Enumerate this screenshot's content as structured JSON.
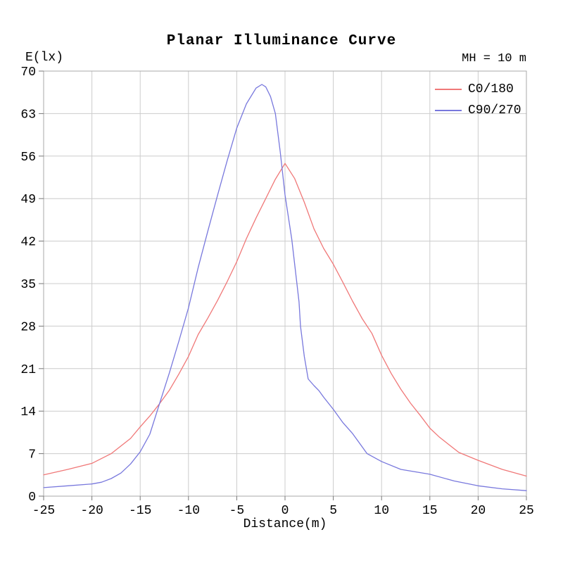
{
  "title": "Planar Illuminance Curve",
  "annotation": "MH = 10 m",
  "axes": {
    "y_label": "E(lx)",
    "x_label": "Distance(m)"
  },
  "legend": {
    "items": [
      {
        "label": "C0/180"
      },
      {
        "label": "C90/270"
      }
    ]
  },
  "colors": {
    "series_c0_180": "#f07878",
    "series_c90_270": "#7878dd",
    "grid": "#cccccc",
    "plot_border": "#aaaaaa",
    "tick": "#777777",
    "text": "#000000",
    "background": "#ffffff"
  },
  "chart_data": {
    "type": "line",
    "title": "Planar Illuminance Curve",
    "xlabel": "Distance(m)",
    "ylabel": "E(lx)",
    "annotation": "MH = 10 m",
    "xlim": [
      -25,
      25
    ],
    "ylim": [
      0,
      70
    ],
    "x_ticks": [
      -25,
      -20,
      -15,
      -10,
      -5,
      0,
      5,
      10,
      15,
      20,
      25
    ],
    "y_ticks": [
      0,
      7,
      14,
      21,
      28,
      35,
      42,
      49,
      56,
      63,
      70
    ],
    "grid": true,
    "legend_position": "top-right",
    "series": [
      {
        "name": "C0/180",
        "color": "#f07878",
        "points": [
          [
            -25,
            3.5
          ],
          [
            -22.5,
            4.4
          ],
          [
            -20,
            5.4
          ],
          [
            -18,
            7.0
          ],
          [
            -16,
            9.5
          ],
          [
            -15,
            11.4
          ],
          [
            -14,
            13.2
          ],
          [
            -13,
            15.2
          ],
          [
            -12,
            17.4
          ],
          [
            -11,
            20.1
          ],
          [
            -10,
            23.0
          ],
          [
            -9,
            26.6
          ],
          [
            -8,
            29.3
          ],
          [
            -7,
            32.2
          ],
          [
            -6,
            35.3
          ],
          [
            -5,
            38.6
          ],
          [
            -4,
            42.4
          ],
          [
            -3,
            45.8
          ],
          [
            -2,
            49.0
          ],
          [
            -1,
            52.2
          ],
          [
            0,
            54.8
          ],
          [
            1,
            52.3
          ],
          [
            2,
            48.4
          ],
          [
            3,
            44.0
          ],
          [
            4,
            40.8
          ],
          [
            5,
            38.2
          ],
          [
            6,
            35.2
          ],
          [
            7,
            32.1
          ],
          [
            8,
            29.2
          ],
          [
            9,
            26.8
          ],
          [
            10,
            23.2
          ],
          [
            11,
            20.2
          ],
          [
            12,
            17.6
          ],
          [
            13,
            15.3
          ],
          [
            14,
            13.3
          ],
          [
            15,
            11.2
          ],
          [
            16,
            9.7
          ],
          [
            18,
            7.2
          ],
          [
            20,
            5.9
          ],
          [
            22.5,
            4.4
          ],
          [
            25,
            3.3
          ]
        ]
      },
      {
        "name": "C90/270",
        "color": "#7878dd",
        "points": [
          [
            -25,
            1.4
          ],
          [
            -22.5,
            1.7
          ],
          [
            -20,
            2.0
          ],
          [
            -19,
            2.3
          ],
          [
            -18,
            2.9
          ],
          [
            -17,
            3.8
          ],
          [
            -16,
            5.3
          ],
          [
            -15,
            7.3
          ],
          [
            -14,
            10.2
          ],
          [
            -13,
            15.2
          ],
          [
            -12,
            20.2
          ],
          [
            -11,
            25.5
          ],
          [
            -10,
            31.0
          ],
          [
            -9,
            37.6
          ],
          [
            -8,
            43.6
          ],
          [
            -7,
            49.5
          ],
          [
            -6,
            55.2
          ],
          [
            -5,
            60.6
          ],
          [
            -4,
            64.6
          ],
          [
            -3,
            67.2
          ],
          [
            -2.4,
            67.8
          ],
          [
            -2,
            67.4
          ],
          [
            -1.5,
            65.8
          ],
          [
            -1,
            63.0
          ],
          [
            -0.5,
            56.8
          ],
          [
            0,
            49.6
          ],
          [
            0.7,
            42.3
          ],
          [
            1.45,
            32.0
          ],
          [
            1.6,
            28.0
          ],
          [
            2,
            23.0
          ],
          [
            2.4,
            19.3
          ],
          [
            3,
            18.2
          ],
          [
            3.5,
            17.4
          ],
          [
            4,
            16.3
          ],
          [
            5,
            14.3
          ],
          [
            6,
            12.1
          ],
          [
            7,
            10.3
          ],
          [
            8.5,
            7.0
          ],
          [
            10,
            5.7
          ],
          [
            12,
            4.4
          ],
          [
            15,
            3.6
          ],
          [
            17.5,
            2.5
          ],
          [
            20,
            1.7
          ],
          [
            22.5,
            1.2
          ],
          [
            25,
            0.9
          ]
        ]
      }
    ]
  }
}
